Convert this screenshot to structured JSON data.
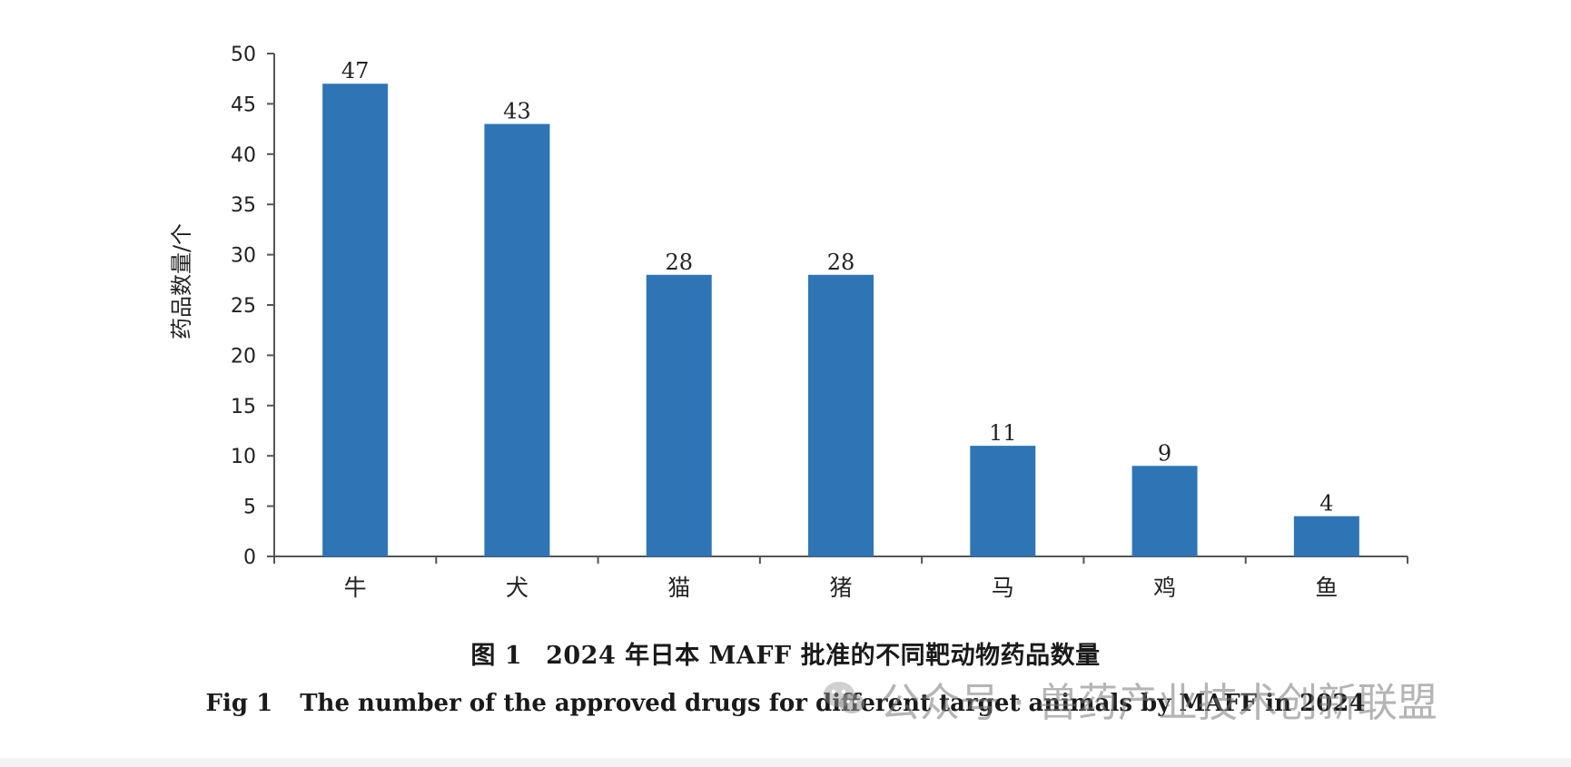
{
  "chart_data": {
    "type": "bar",
    "categories": [
      "牛",
      "犬",
      "猫",
      "猪",
      "马",
      "鸡",
      "鱼"
    ],
    "values": [
      47,
      43,
      28,
      28,
      11,
      9,
      4
    ],
    "data_labels": [
      "47",
      "43",
      "28",
      "28",
      "11",
      "9",
      "4"
    ],
    "ylabel": "药品数量/个",
    "ylim": [
      0,
      50
    ],
    "yticks": [
      "0",
      "5",
      "10",
      "15",
      "20",
      "25",
      "30",
      "35",
      "40",
      "45",
      "50"
    ],
    "grid": false,
    "bar_color": "#2e75b6"
  },
  "caption": {
    "zh_number": "图 1",
    "zh_text": "2024 年日本 MAFF 批准的不同靶动物药品数量",
    "en_number": "Fig 1",
    "en_text": "The number of the approved drugs for different target animals by MAFF in 2024"
  },
  "watermark": {
    "icon": "wechat-icon",
    "text": "公众号 · 兽药产业技术创新联盟"
  }
}
